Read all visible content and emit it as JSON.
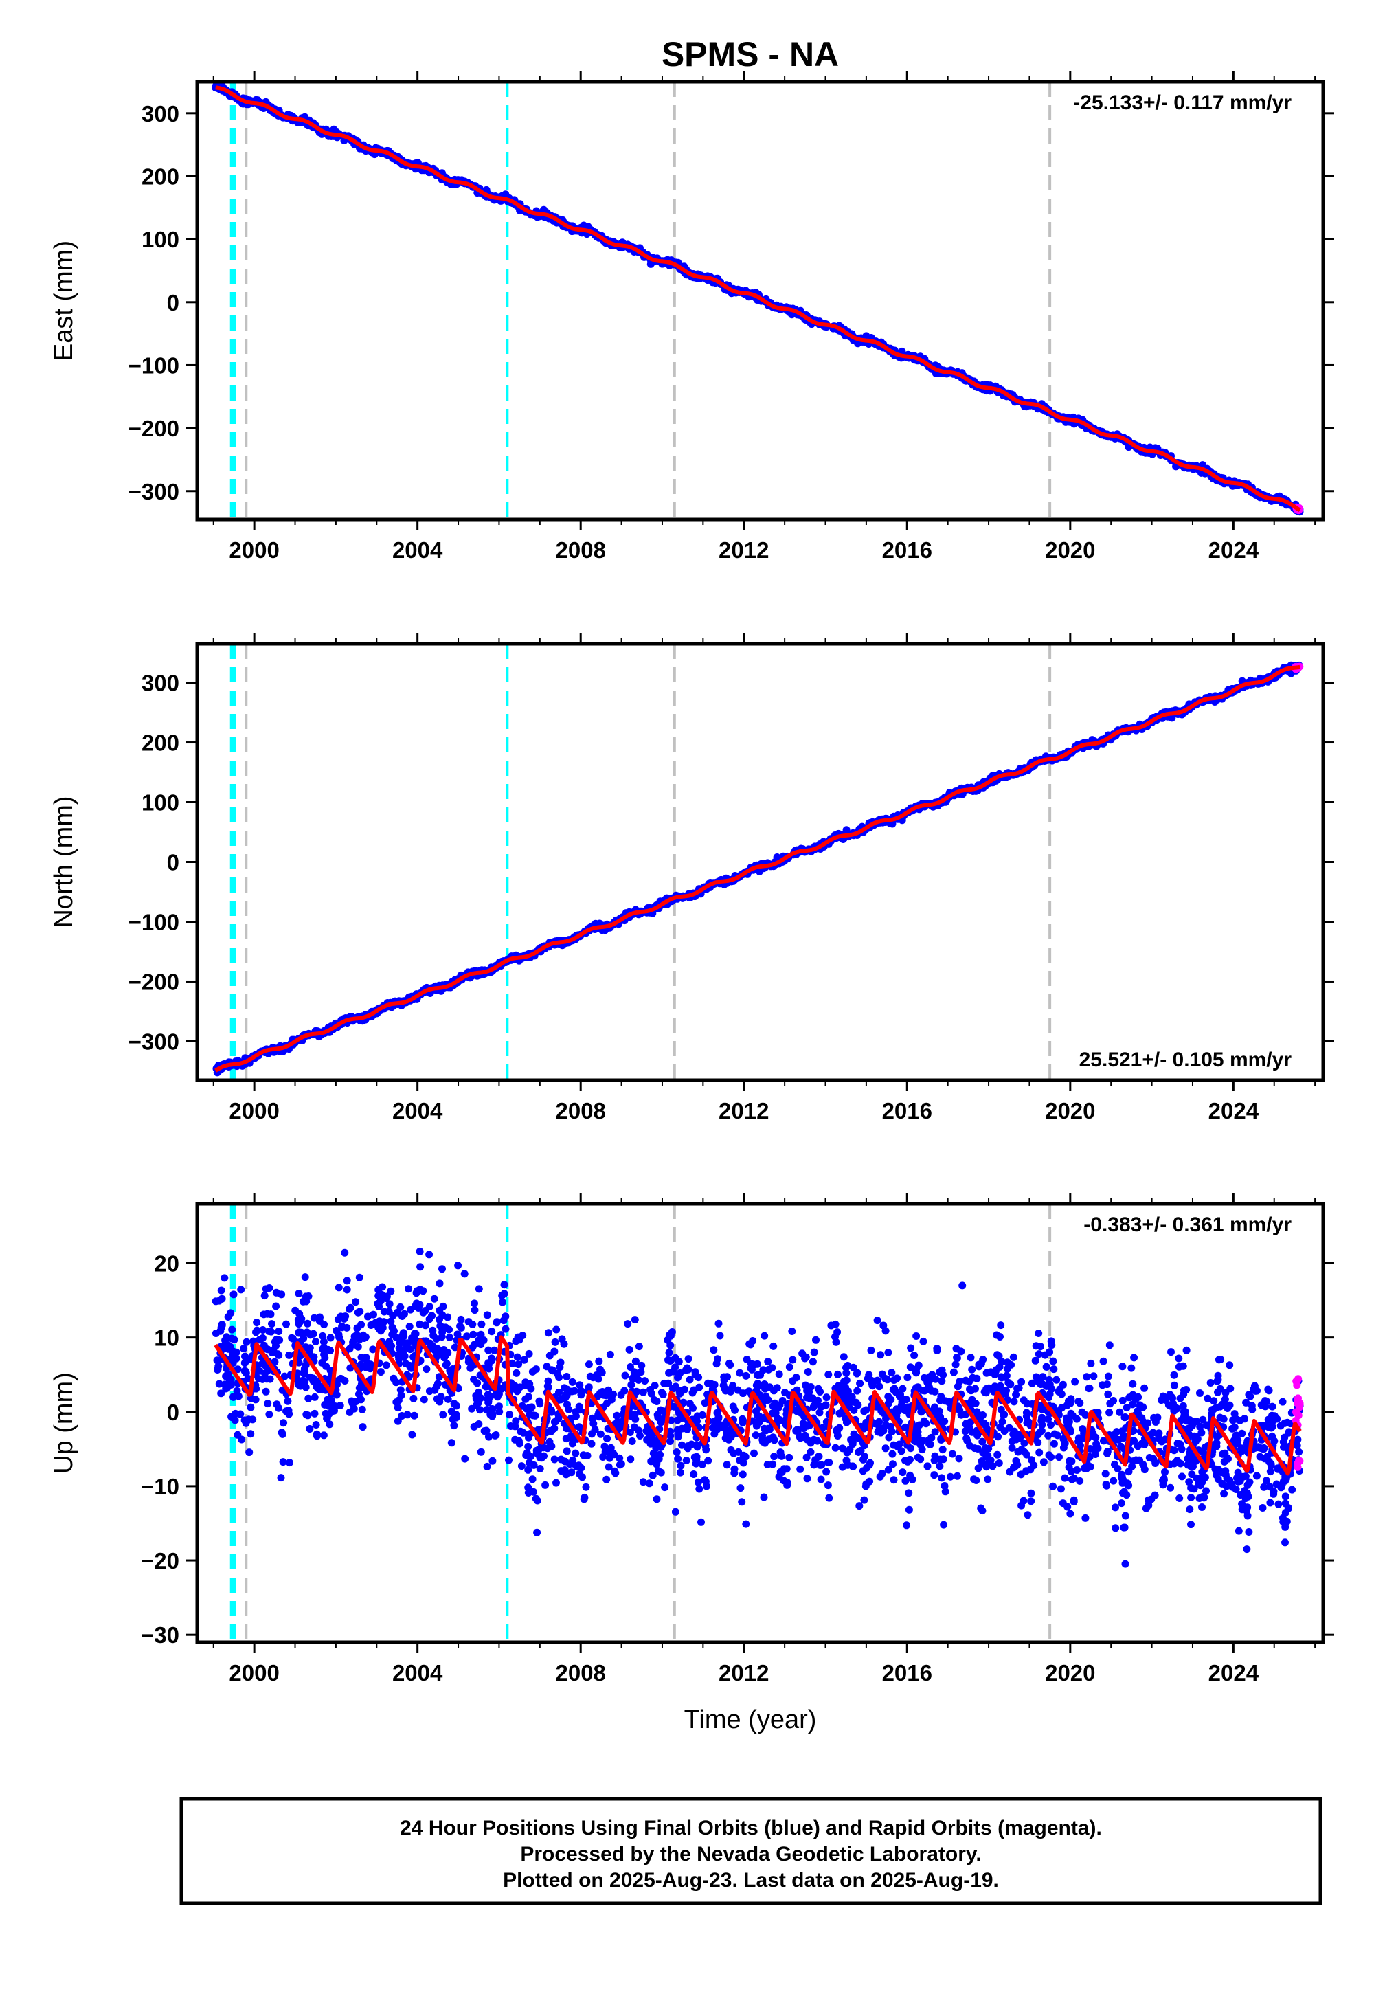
{
  "title": "SPMS - NA",
  "xlabel": "Time (year)",
  "footer": {
    "line1": "24 Hour Positions Using Final Orbits (blue) and Rapid Orbits (magenta).",
    "line2": "Processed by the Nevada Geodetic Laboratory.",
    "line3": "Plotted on 2025-Aug-23. Last data on 2025-Aug-19."
  },
  "colors": {
    "final_orbits": "#0000ff",
    "rapid_orbits": "#ff00ff",
    "model_fit": "#ff0000",
    "equipment_change": "#00ffff",
    "catalog_event": "#c0c0c0"
  },
  "chart_data": [
    {
      "type": "scatter",
      "component": "east",
      "ylabel": "East (mm)",
      "rate_label": "-25.133+/- 0.117 mm/yr",
      "xlim": [
        1998.6,
        2026.2
      ],
      "ylim": [
        -345,
        350
      ],
      "x_ticks": [
        2000,
        2004,
        2008,
        2012,
        2016,
        2020,
        2024
      ],
      "y_ticks": [
        -300,
        -200,
        -100,
        0,
        100,
        200,
        300
      ],
      "data_start": 1999.05,
      "data_end": 2025.63,
      "fit": {
        "reference_year": 1999.05,
        "value_at_reference": 340,
        "rate_mm_per_yr": -25.133,
        "annual_amplitude": 3,
        "scatter": 2.5
      },
      "rapid_orbits_x": [
        2025.52,
        2025.63
      ],
      "equipment_changes": [
        1999.48,
        2006.2
      ],
      "catalog_events": [
        1999.8,
        2010.3,
        2019.5
      ]
    },
    {
      "type": "scatter",
      "component": "north",
      "ylabel": "North (mm)",
      "rate_label": "25.521+/- 0.105 mm/yr",
      "xlim": [
        1998.6,
        2026.2
      ],
      "ylim": [
        -365,
        365
      ],
      "x_ticks": [
        2000,
        2004,
        2008,
        2012,
        2016,
        2020,
        2024
      ],
      "y_ticks": [
        -300,
        -200,
        -100,
        0,
        100,
        200,
        300
      ],
      "data_start": 1999.05,
      "data_end": 2025.63,
      "fit": {
        "reference_year": 1999.05,
        "value_at_reference": -350,
        "rate_mm_per_yr": 25.521,
        "annual_amplitude": 3,
        "scatter": 2.5
      },
      "rapid_orbits_x": [
        2025.52,
        2025.63
      ],
      "equipment_changes": [
        1999.48,
        2006.2
      ],
      "catalog_events": [
        1999.8,
        2010.3,
        2019.5
      ]
    },
    {
      "type": "scatter",
      "component": "up",
      "ylabel": "Up (mm)",
      "rate_label": "-0.383+/- 0.361 mm/yr",
      "xlim": [
        1998.6,
        2026.2
      ],
      "ylim": [
        -31,
        28
      ],
      "x_ticks": [
        2000,
        2004,
        2008,
        2012,
        2016,
        2020,
        2024
      ],
      "y_ticks": [
        -30,
        -20,
        -10,
        0,
        10,
        20
      ],
      "data_start": 1999.05,
      "data_end": 2025.63,
      "fit": {
        "segments": [
          {
            "start": 1999.05,
            "end": 2006.2,
            "level": 5.5,
            "rate_mm_per_yr": 0.15
          },
          {
            "start": 2006.2,
            "end": 2019.5,
            "level": -0.8,
            "rate_mm_per_yr": 0.0
          },
          {
            "start": 2019.5,
            "end": 2025.63,
            "level": -3.0,
            "rate_mm_per_yr": -0.33
          }
        ],
        "annual_amplitude": 3.5,
        "scatter": 4.5
      },
      "rapid_orbits_x": [
        2025.52,
        2025.63
      ],
      "equipment_changes": [
        1999.48,
        2006.2
      ],
      "catalog_events": [
        1999.8,
        2010.3,
        2019.5
      ]
    }
  ]
}
